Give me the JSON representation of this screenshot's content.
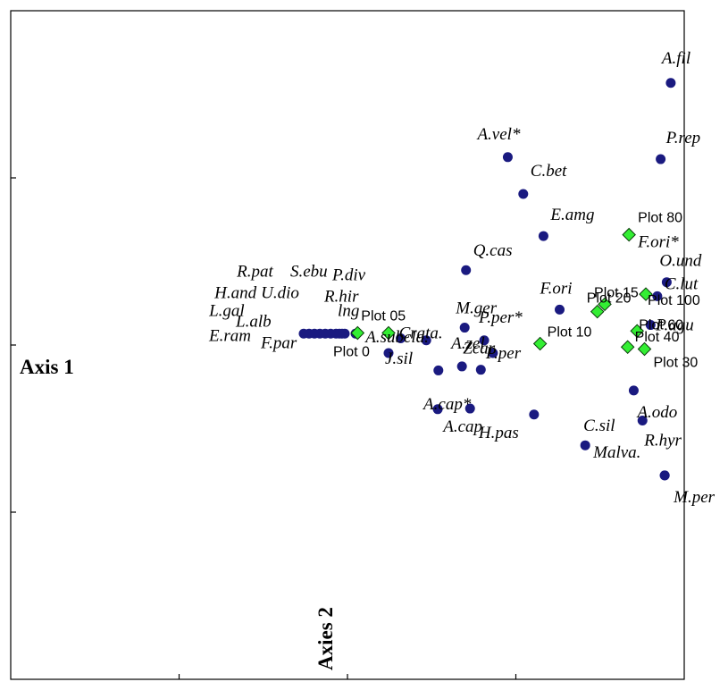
{
  "chart_data": {
    "type": "scatter",
    "title": "",
    "xlabel": "Axis 1",
    "ylabel": "Axies 2",
    "xlim": [
      0,
      100
    ],
    "ylim": [
      0,
      100
    ],
    "grid": false,
    "colors": {
      "species": "#1a1a80",
      "plots": "#33ee33",
      "plot_edge": "#0a3a0a"
    },
    "series": [
      {
        "kind": "species",
        "points": [
          {
            "label": "A.fil",
            "x": 98.0,
            "y": 89.2
          },
          {
            "label": "P.rep",
            "x": 96.5,
            "y": 77.8
          },
          {
            "label": "A.vel*",
            "x": 73.8,
            "y": 78.1
          },
          {
            "label": "C.bet",
            "x": 76.1,
            "y": 72.6
          },
          {
            "label": "E.amg",
            "x": 79.1,
            "y": 66.3
          },
          {
            "label": "Q.cas",
            "x": 67.6,
            "y": 61.2
          },
          {
            "label": "O.und",
            "x": 97.4,
            "y": 59.4
          },
          {
            "label": "C.lut",
            "x": 96.0,
            "y": 57.3
          },
          {
            "label": "F.ori",
            "x": 81.5,
            "y": 55.3
          },
          {
            "label": "M.ger",
            "x": 67.4,
            "y": 52.6
          },
          {
            "label": "P.agu",
            "x": 95.0,
            "y": 53.0
          },
          {
            "label": "P.per*",
            "x": 70.3,
            "y": 50.7
          },
          {
            "label": "P.per",
            "x": 71.6,
            "y": 48.8
          },
          {
            "label": "A.subcla.",
            "x": 61.7,
            "y": 50.7
          },
          {
            "label": "Crata.",
            "x": 57.9,
            "y": 51.0
          },
          {
            "label": "J.sil",
            "x": 56.1,
            "y": 48.8
          },
          {
            "label": "",
            "x": 63.5,
            "y": 46.2
          },
          {
            "label": "A.zel",
            "x": 67.0,
            "y": 46.8
          },
          {
            "label": "Zcar",
            "x": 69.8,
            "y": 46.3
          },
          {
            "label": "A.cap*",
            "x": 63.4,
            "y": 40.4
          },
          {
            "label": "A.cap",
            "x": 68.2,
            "y": 40.5
          },
          {
            "label": "H.pas",
            "x": 77.7,
            "y": 39.6
          },
          {
            "label": "C.sil",
            "x": 85.3,
            "y": 35.0
          },
          {
            "label": "A.odo",
            "x": 92.5,
            "y": 43.2
          },
          {
            "label": "R.hyr",
            "x": 93.8,
            "y": 38.7
          },
          {
            "label": "Malva.",
            "x": 97.1,
            "y": 30.5
          },
          {
            "label": "M.per",
            "x": 97.1,
            "y": 30.5
          },
          {
            "label": "F.par",
            "x": 43.5,
            "y": 51.7
          },
          {
            "label": "E.ram",
            "x": 44.3,
            "y": 51.7
          },
          {
            "label": "L.alb",
            "x": 45.1,
            "y": 51.7
          },
          {
            "label": "L.gal",
            "x": 45.9,
            "y": 51.7
          },
          {
            "label": "H.and",
            "x": 46.7,
            "y": 51.7
          },
          {
            "label": "R.pat",
            "x": 47.5,
            "y": 51.7
          },
          {
            "label": "U.dio",
            "x": 48.3,
            "y": 51.7
          },
          {
            "label": "S.ebu",
            "x": 48.8,
            "y": 51.7
          },
          {
            "label": "R.hir",
            "x": 49.2,
            "y": 51.7
          },
          {
            "label": "P.div",
            "x": 49.6,
            "y": 51.7
          },
          {
            "label": "lng",
            "x": 51.2,
            "y": 51.7
          }
        ]
      },
      {
        "kind": "plots",
        "points": [
          {
            "label": "Plot 0",
            "x": 56.1,
            "y": 51.8
          },
          {
            "label": "Plot 05",
            "x": 51.5,
            "y": 51.8
          },
          {
            "label": "Plot 10",
            "x": 78.6,
            "y": 50.2
          },
          {
            "label": "Plot 15",
            "x": 88.2,
            "y": 56.1
          },
          {
            "label": "Plot 20",
            "x": 87.1,
            "y": 55.0
          },
          {
            "label": "Plot 30",
            "x": 94.1,
            "y": 49.4
          },
          {
            "label": "Plot 40",
            "x": 91.6,
            "y": 49.7
          },
          {
            "label": "Plot 60",
            "x": 93.0,
            "y": 52.1
          },
          {
            "label": "Plot 80",
            "x": 91.8,
            "y": 66.5
          },
          {
            "label": "Plot 100",
            "x": 94.3,
            "y": 57.6
          },
          {
            "label": "F.ori*",
            "x": 91.8,
            "y": 66.5
          }
        ]
      }
    ]
  }
}
